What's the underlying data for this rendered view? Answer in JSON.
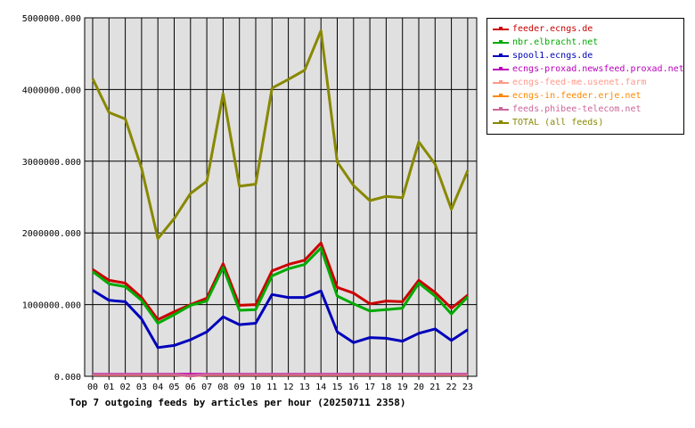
{
  "chart_data": {
    "type": "line",
    "title": "Top 7 outgoing feeds by articles per hour (20250711 2358)",
    "categories": [
      "00",
      "01",
      "02",
      "03",
      "04",
      "05",
      "06",
      "07",
      "08",
      "09",
      "10",
      "11",
      "12",
      "13",
      "14",
      "15",
      "16",
      "17",
      "18",
      "19",
      "20",
      "21",
      "22",
      "23"
    ],
    "y_ticks": [
      "0.000",
      "1000000.000",
      "2000000.000",
      "3000000.000",
      "4000000.000",
      "5000000.000"
    ],
    "ylim": [
      0,
      5000000
    ],
    "grid": true,
    "legend_position": "right",
    "series": [
      {
        "name": "feeder.ecngs.de",
        "color": "#cc0000",
        "values": [
          1490000,
          1340000,
          1300000,
          1100000,
          790000,
          900000,
          1000000,
          1090000,
          1570000,
          990000,
          1000000,
          1470000,
          1560000,
          1620000,
          1860000,
          1240000,
          1160000,
          1010000,
          1050000,
          1040000,
          1340000,
          1170000,
          950000,
          1130000
        ]
      },
      {
        "name": "nbr.elbracht.net",
        "color": "#00aa00",
        "values": [
          1460000,
          1290000,
          1250000,
          1060000,
          740000,
          860000,
          990000,
          1050000,
          1520000,
          920000,
          930000,
          1400000,
          1500000,
          1560000,
          1790000,
          1120000,
          1010000,
          910000,
          930000,
          950000,
          1300000,
          1120000,
          870000,
          1110000
        ]
      },
      {
        "name": "spool1.ecngs.de",
        "color": "#0000bb",
        "values": [
          1200000,
          1060000,
          1040000,
          800000,
          400000,
          430000,
          510000,
          620000,
          830000,
          720000,
          740000,
          1140000,
          1100000,
          1100000,
          1190000,
          620000,
          470000,
          540000,
          530000,
          490000,
          600000,
          660000,
          500000,
          650000
        ]
      },
      {
        "name": "ecngs-proxad.newsfeed.proxad.net",
        "color": "#bb00bb",
        "values": [
          30000,
          30000,
          30000,
          30000,
          30000,
          30000,
          30000,
          30000,
          30000,
          30000,
          30000,
          30000,
          30000,
          30000,
          30000,
          30000,
          30000,
          30000,
          30000,
          30000,
          30000,
          30000,
          30000,
          30000
        ]
      },
      {
        "name": "ecngs-feed-me.usenet.farm",
        "color": "#ff9988",
        "values": [
          25000,
          25000,
          25000,
          25000,
          25000,
          25000,
          10000,
          25000,
          25000,
          25000,
          25000,
          25000,
          25000,
          25000,
          25000,
          25000,
          25000,
          25000,
          25000,
          25000,
          25000,
          25000,
          25000,
          25000
        ]
      },
      {
        "name": "ecngs-in.feeder.erje.net",
        "color": "#ff8800",
        "values": [
          20000,
          20000,
          20000,
          20000,
          20000,
          20000,
          5000,
          20000,
          20000,
          20000,
          20000,
          20000,
          20000,
          20000,
          20000,
          20000,
          20000,
          20000,
          20000,
          20000,
          20000,
          20000,
          20000,
          20000
        ]
      },
      {
        "name": "feeds.phibee-telecom.net",
        "color": "#cc6699",
        "values": [
          25000,
          25000,
          25000,
          25000,
          25000,
          25000,
          5000,
          25000,
          25000,
          25000,
          25000,
          25000,
          25000,
          25000,
          25000,
          25000,
          25000,
          25000,
          25000,
          25000,
          25000,
          25000,
          25000,
          25000
        ]
      },
      {
        "name": "TOTAL (all feeds)",
        "color": "#888800",
        "values": [
          4150000,
          3680000,
          3590000,
          2900000,
          1920000,
          2200000,
          2550000,
          2720000,
          3940000,
          2650000,
          2680000,
          4020000,
          4140000,
          4270000,
          4820000,
          2990000,
          2660000,
          2450000,
          2510000,
          2490000,
          3270000,
          2960000,
          2330000,
          2870000
        ]
      }
    ]
  }
}
